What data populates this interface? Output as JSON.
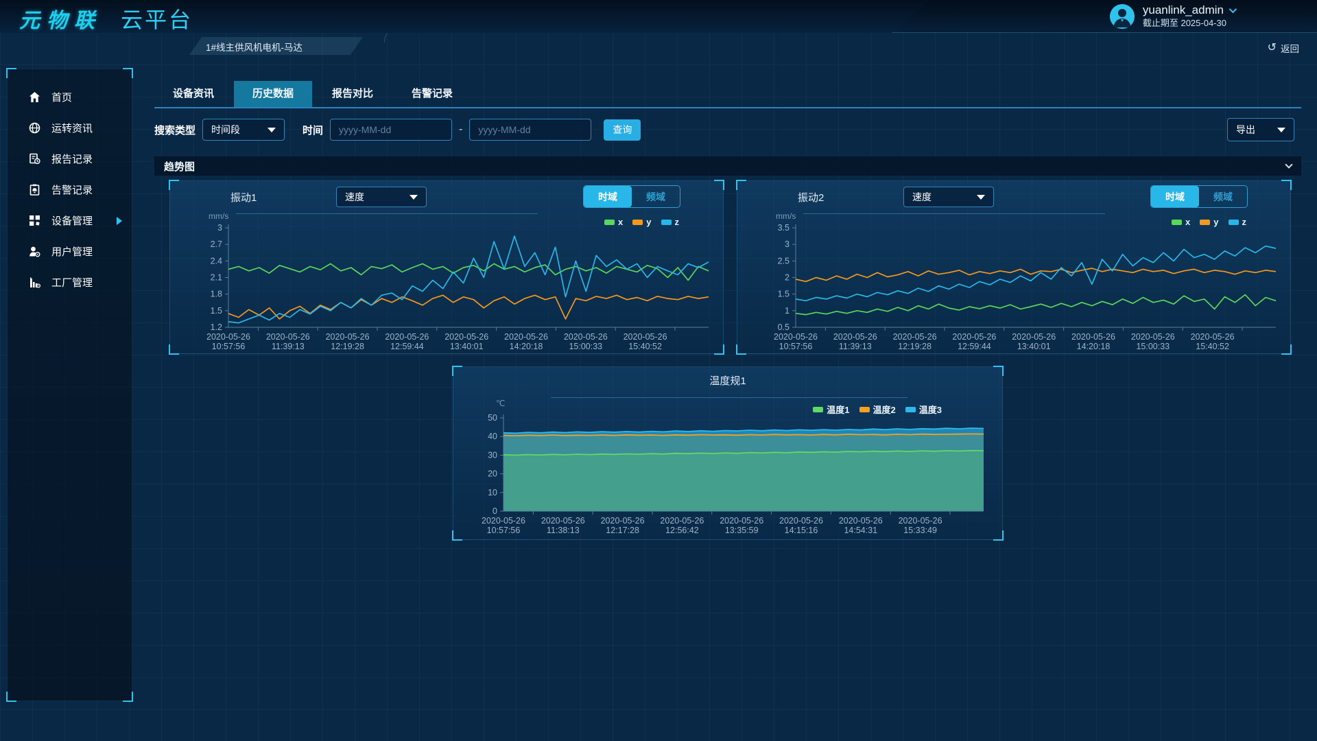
{
  "header": {
    "logo": "元物联",
    "platform": "云平台",
    "breadcrumb": "1#线主供风机电机-马达",
    "user": {
      "name": "yuanlink_admin",
      "expiry": "截止期至 2025-04-30"
    },
    "back_label": "返回",
    "back_icon": "↺"
  },
  "sidebar": {
    "items": [
      {
        "label": "首页",
        "icon": "home-icon"
      },
      {
        "label": "运转资讯",
        "icon": "operation-info-icon"
      },
      {
        "label": "报告记录",
        "icon": "report-record-icon"
      },
      {
        "label": "告警记录",
        "icon": "alarm-record-icon"
      },
      {
        "label": "设备管理",
        "icon": "device-manage-icon",
        "expanded_arrow": true
      },
      {
        "label": "用户管理",
        "icon": "user-manage-icon"
      },
      {
        "label": "工厂管理",
        "icon": "factory-manage-icon"
      }
    ]
  },
  "tabs": [
    {
      "label": "设备资讯",
      "active": false
    },
    {
      "label": "历史数据",
      "active": true
    },
    {
      "label": "报告对比",
      "active": false
    },
    {
      "label": "告警记录",
      "active": false
    }
  ],
  "search": {
    "type_label": "搜索类型",
    "type_value": "时间段",
    "time_label": "时间",
    "from_placeholder": "yyyy-MM-dd",
    "to_placeholder": "yyyy-MM-dd",
    "separator": "-",
    "query_label": "查询",
    "export_label": "导出"
  },
  "section": {
    "title": "趋势图"
  },
  "colors": {
    "accent": "#29b6e8",
    "series_x": "#5ad85a",
    "series_y": "#f6981e",
    "series_z": "#29b6e8"
  },
  "chart_data": [
    {
      "id": "vibration1",
      "type": "line",
      "title": "振动1",
      "controls": {
        "sensor": "速度",
        "domain_active": "时域",
        "domain_inactive": "频域"
      },
      "ylabel": "mm/s",
      "ylim": [
        1.2,
        3.0
      ],
      "yticks": [
        3,
        2.7,
        2.4,
        2.1,
        1.8,
        1.5,
        1.2
      ],
      "x_labels": [
        "2020-05-26 10:57:56",
        "2020-05-26 11:39:13",
        "2020-05-26 12:19:28",
        "2020-05-26 12:59:44",
        "2020-05-26 13:40:01",
        "2020-05-26 14:20:18",
        "2020-05-26 15:00:33",
        "2020-05-26 15:40:52"
      ],
      "series": [
        {
          "name": "x",
          "color": "#5ad85a",
          "values": [
            2.25,
            2.3,
            2.22,
            2.28,
            2.18,
            2.32,
            2.26,
            2.2,
            2.3,
            2.24,
            2.35,
            2.22,
            2.28,
            2.15,
            2.3,
            2.26,
            2.33,
            2.2,
            2.28,
            2.35,
            2.25,
            2.3,
            2.18,
            2.28,
            2.32,
            2.22,
            2.35,
            2.25,
            2.3,
            2.2,
            2.28,
            2.33,
            2.15,
            2.25,
            2.3,
            2.22,
            2.28,
            2.18,
            2.3,
            2.25,
            2.2,
            2.32,
            2.26,
            2.1,
            2.28,
            2.05,
            2.3,
            2.22
          ]
        },
        {
          "name": "y",
          "color": "#f6981e",
          "values": [
            1.45,
            1.38,
            1.52,
            1.42,
            1.55,
            1.35,
            1.5,
            1.58,
            1.45,
            1.6,
            1.52,
            1.65,
            1.55,
            1.7,
            1.6,
            1.72,
            1.65,
            1.75,
            1.68,
            1.6,
            1.72,
            1.78,
            1.65,
            1.75,
            1.7,
            1.55,
            1.68,
            1.75,
            1.62,
            1.72,
            1.78,
            1.7,
            1.75,
            1.35,
            1.72,
            1.68,
            1.76,
            1.72,
            1.78,
            1.7,
            1.74,
            1.68,
            1.76,
            1.72,
            1.7,
            1.76,
            1.72,
            1.75
          ]
        },
        {
          "name": "z",
          "color": "#29b6e8",
          "values": [
            1.3,
            1.28,
            1.35,
            1.42,
            1.33,
            1.45,
            1.38,
            1.52,
            1.44,
            1.58,
            1.5,
            1.65,
            1.55,
            1.72,
            1.6,
            1.78,
            1.82,
            1.7,
            1.95,
            1.85,
            2.05,
            1.9,
            2.2,
            2.0,
            2.45,
            2.1,
            2.75,
            2.25,
            2.85,
            2.3,
            2.55,
            2.15,
            2.65,
            1.75,
            2.4,
            1.85,
            2.5,
            2.3,
            2.42,
            2.25,
            2.35,
            2.1,
            2.3,
            2.22,
            2.15,
            2.35,
            2.28,
            2.38
          ]
        }
      ]
    },
    {
      "id": "vibration2",
      "type": "line",
      "title": "振动2",
      "controls": {
        "sensor": "速度",
        "domain_active": "时域",
        "domain_inactive": "频域"
      },
      "ylabel": "mm/s",
      "ylim": [
        0.5,
        3.5
      ],
      "yticks": [
        3.5,
        3,
        2.5,
        2,
        1.5,
        1,
        0.5
      ],
      "x_labels": [
        "2020-05-26 10:57:56",
        "2020-05-26 11:39:13",
        "2020-05-26 12:19:28",
        "2020-05-26 12:59:44",
        "2020-05-26 13:40:01",
        "2020-05-26 14:20:18",
        "2020-05-26 15:00:33",
        "2020-05-26 15:40:52"
      ],
      "series": [
        {
          "name": "x",
          "color": "#5ad85a",
          "values": [
            0.92,
            0.88,
            0.95,
            0.9,
            0.98,
            0.92,
            1.0,
            0.95,
            1.05,
            0.98,
            1.1,
            1.0,
            1.15,
            1.05,
            1.2,
            1.08,
            1.02,
            1.12,
            1.06,
            1.15,
            1.08,
            1.18,
            1.05,
            1.12,
            1.2,
            1.1,
            1.22,
            1.12,
            1.25,
            1.15,
            1.28,
            1.18,
            1.35,
            1.22,
            1.4,
            1.25,
            1.32,
            1.2,
            1.45,
            1.28,
            1.35,
            1.05,
            1.42,
            1.25,
            1.48,
            1.15,
            1.4,
            1.3
          ]
        },
        {
          "name": "y",
          "color": "#f6981e",
          "values": [
            1.95,
            1.88,
            2.0,
            1.92,
            2.05,
            1.95,
            2.1,
            2.0,
            2.15,
            2.02,
            2.08,
            2.18,
            2.05,
            2.2,
            2.1,
            2.15,
            2.22,
            2.08,
            2.18,
            2.12,
            2.2,
            2.15,
            2.25,
            2.1,
            2.2,
            2.18,
            2.25,
            2.15,
            2.22,
            2.28,
            2.18,
            2.25,
            2.2,
            2.15,
            2.25,
            2.18,
            2.22,
            2.12,
            2.2,
            2.25,
            2.15,
            2.22,
            2.18,
            2.1,
            2.2,
            2.15,
            2.22,
            2.18
          ]
        },
        {
          "name": "z",
          "color": "#29b6e8",
          "values": [
            1.35,
            1.3,
            1.4,
            1.35,
            1.45,
            1.38,
            1.5,
            1.42,
            1.55,
            1.48,
            1.6,
            1.52,
            1.68,
            1.58,
            1.75,
            1.65,
            1.8,
            1.7,
            1.88,
            1.78,
            1.95,
            1.85,
            2.05,
            1.9,
            2.15,
            1.95,
            2.3,
            2.05,
            2.45,
            1.8,
            2.55,
            2.2,
            2.7,
            2.35,
            2.6,
            2.45,
            2.75,
            2.5,
            2.85,
            2.6,
            2.7,
            2.55,
            2.8,
            2.65,
            2.9,
            2.75,
            2.95,
            2.88
          ]
        }
      ]
    },
    {
      "id": "temperature1",
      "type": "area",
      "title": "温度规1",
      "ylabel": "℃",
      "ylim": [
        0,
        50
      ],
      "yticks": [
        50,
        40,
        30,
        20,
        10,
        0
      ],
      "x_labels": [
        "2020-05-26 10:57:56",
        "2020-05-26 11:38:13",
        "2020-05-26 12:17:28",
        "2020-05-26 12:56:42",
        "2020-05-26 13:35:59",
        "2020-05-26 14:15:16",
        "2020-05-26 14:54:31",
        "2020-05-26 15:33:49"
      ],
      "series": [
        {
          "name": "温度1",
          "color": "#62d962",
          "fill": "#47a18c",
          "values": [
            30.2,
            30.0,
            30.3,
            30.1,
            30.4,
            30.2,
            30.5,
            30.3,
            30.6,
            30.4,
            30.7,
            30.5,
            30.8,
            30.6,
            31.0,
            30.8,
            31.1,
            30.9,
            31.2,
            31.0,
            31.4,
            31.2,
            31.5,
            31.3,
            31.7,
            31.5,
            31.8,
            31.6,
            32.0,
            31.8,
            32.1,
            31.9,
            32.2,
            32.0,
            32.3,
            32.1,
            32.4,
            32.2,
            32.5,
            32.4
          ]
        },
        {
          "name": "温度2",
          "color": "#f6a01e",
          "fill": "#3f8f96",
          "values": [
            40.6,
            40.4,
            40.7,
            40.5,
            40.8,
            40.5,
            40.7,
            40.6,
            40.8,
            40.6,
            40.9,
            40.7,
            40.8,
            40.6,
            40.9,
            40.7,
            41.0,
            40.8,
            40.9,
            40.7,
            41.0,
            40.8,
            41.1,
            40.9,
            41.0,
            40.8,
            41.1,
            40.9,
            41.2,
            41.0,
            41.1,
            40.9,
            41.2,
            41.0,
            41.3,
            41.1,
            41.2,
            41.3,
            41.4,
            41.3
          ]
        },
        {
          "name": "温度3",
          "color": "#2fb8ea",
          "fill": "#1e8fc0",
          "values": [
            42.0,
            41.8,
            42.2,
            42.0,
            42.4,
            42.1,
            42.5,
            42.2,
            42.6,
            42.3,
            42.7,
            42.4,
            42.8,
            42.5,
            43.0,
            42.7,
            43.1,
            42.8,
            43.2,
            43.0,
            43.4,
            43.1,
            43.5,
            43.2,
            43.6,
            43.3,
            43.7,
            43.4,
            43.8,
            43.5,
            44.0,
            43.7,
            44.1,
            43.8,
            44.2,
            44.0,
            44.4,
            44.1,
            44.5,
            44.3
          ]
        }
      ]
    }
  ]
}
